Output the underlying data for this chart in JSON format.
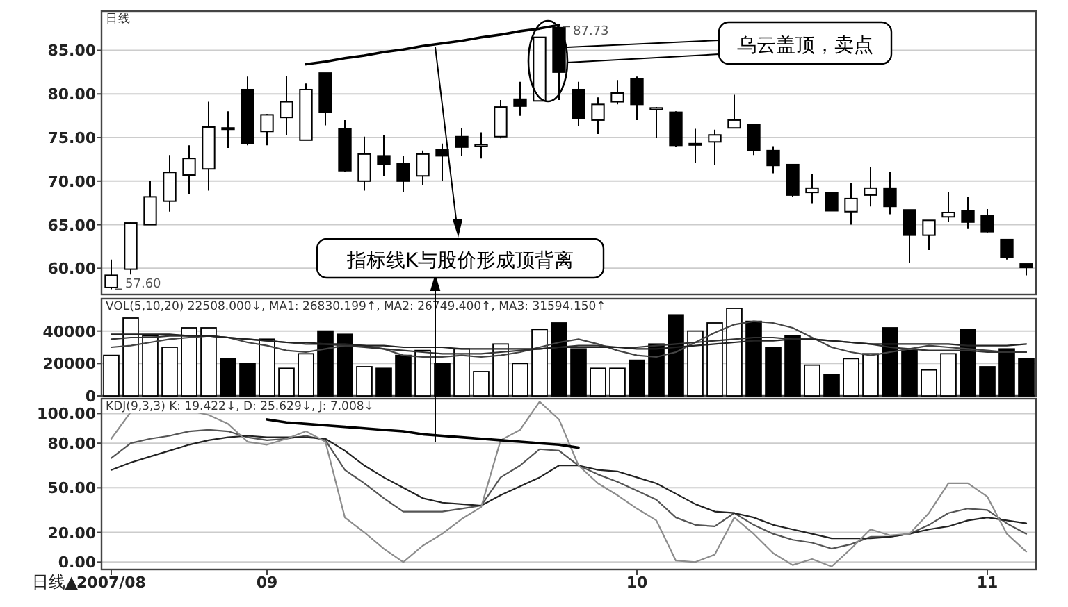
{
  "chart_data": [
    {
      "type": "candlestick",
      "title": "日线",
      "categories": [
        null,
        null,
        null,
        null,
        null,
        null,
        null,
        null,
        null,
        null,
        null,
        null,
        null,
        null,
        null,
        null,
        null,
        null,
        null,
        null,
        null,
        null,
        null,
        null,
        null,
        null,
        null,
        null,
        null,
        null,
        null,
        null,
        null,
        null,
        null,
        null,
        null,
        null,
        null,
        null,
        null,
        null,
        null,
        null,
        null,
        null,
        null,
        null
      ],
      "ohlc": [
        [
          57.8,
          61.0,
          57.6,
          59.2
        ],
        [
          59.9,
          65.3,
          59.3,
          65.2
        ],
        [
          65.0,
          70.0,
          65.0,
          68.2
        ],
        [
          67.7,
          73.0,
          66.5,
          71.0
        ],
        [
          70.7,
          74.1,
          68.5,
          72.6
        ],
        [
          71.4,
          79.1,
          68.9,
          76.2
        ],
        [
          76.1,
          78.0,
          73.8,
          76.0
        ],
        [
          80.5,
          82.0,
          74.1,
          74.3
        ],
        [
          75.7,
          77.7,
          74.1,
          77.6
        ],
        [
          77.3,
          82.1,
          75.3,
          79.1
        ],
        [
          74.7,
          81.2,
          74.7,
          80.5
        ],
        [
          82.4,
          82.4,
          76.4,
          77.9
        ],
        [
          76.0,
          77.0,
          71.1,
          71.2
        ],
        [
          70.0,
          75.1,
          68.9,
          73.1
        ],
        [
          72.9,
          75.3,
          70.6,
          71.9
        ],
        [
          72.0,
          72.9,
          68.7,
          70.0
        ],
        [
          70.6,
          73.5,
          69.5,
          73.1
        ],
        [
          73.6,
          74.3,
          70.0,
          72.9
        ],
        [
          75.1,
          76.1,
          72.9,
          73.9
        ],
        [
          74.0,
          75.6,
          72.6,
          74.2
        ],
        [
          75.1,
          79.3,
          74.9,
          78.5
        ],
        [
          79.4,
          81.4,
          77.5,
          78.6
        ],
        [
          79.2,
          86.5,
          79.2,
          86.5
        ],
        [
          87.6,
          87.73,
          79.3,
          82.5
        ],
        [
          80.5,
          81.4,
          76.3,
          77.2
        ],
        [
          77.0,
          79.6,
          75.4,
          78.8
        ],
        [
          79.1,
          81.6,
          78.8,
          80.1
        ],
        [
          81.7,
          82.0,
          77.0,
          78.8
        ],
        [
          78.2,
          78.5,
          75.0,
          78.4
        ],
        [
          77.9,
          78.0,
          73.9,
          74.1
        ],
        [
          74.2,
          76.0,
          72.1,
          74.3
        ],
        [
          74.5,
          75.9,
          71.9,
          75.3
        ],
        [
          76.1,
          79.9,
          76.1,
          77.0
        ],
        [
          76.5,
          76.5,
          73.0,
          73.5
        ],
        [
          73.5,
          74.0,
          70.9,
          71.8
        ],
        [
          71.9,
          71.9,
          68.2,
          68.4
        ],
        [
          68.7,
          70.8,
          67.4,
          69.2
        ],
        [
          68.7,
          68.7,
          66.6,
          66.6
        ],
        [
          66.5,
          69.8,
          65.0,
          68.0
        ],
        [
          68.4,
          71.6,
          67.1,
          69.2
        ],
        [
          69.2,
          71.1,
          66.2,
          67.1
        ],
        [
          66.7,
          66.7,
          60.6,
          63.8
        ],
        [
          63.8,
          65.5,
          62.1,
          65.5
        ],
        [
          65.9,
          68.7,
          65.3,
          66.4
        ],
        [
          66.6,
          68.2,
          64.5,
          65.3
        ],
        [
          66.0,
          66.8,
          64.1,
          64.2
        ],
        [
          63.3,
          63.3,
          61.0,
          61.3
        ],
        [
          60.5,
          60.5,
          59.2,
          60.1
        ]
      ],
      "series": [
        {
          "type": "line",
          "color": "#000000",
          "values": [
            null,
            null,
            null,
            null,
            null,
            null,
            null,
            null,
            null,
            null,
            83.4,
            83.7,
            84.1,
            84.4,
            84.8,
            85.1,
            85.5,
            85.8,
            86.1,
            86.5,
            86.8,
            87.2,
            87.5,
            87.9,
            null,
            null,
            null,
            null,
            null,
            null,
            null,
            null,
            null,
            null,
            null,
            null,
            null,
            null,
            null,
            null,
            null,
            null,
            null,
            null,
            null,
            null,
            null,
            null
          ]
        }
      ],
      "ylim": [
        57,
        89.5
      ],
      "yticks": [
        {
          "value": 60,
          "label": "60.00"
        },
        {
          "value": 65,
          "label": "65.00"
        },
        {
          "value": 70,
          "label": "70.00"
        },
        {
          "value": 75,
          "label": "75.00"
        },
        {
          "value": 80,
          "label": "80.00"
        },
        {
          "value": 85,
          "label": "85.00"
        }
      ],
      "grid": "y",
      "tick_labels": "y",
      "annotations": [
        "57.60",
        "87.73",
        "乌云盖顶，卖点",
        "指标线K与股价形成顶背离"
      ]
    },
    {
      "type": "bar",
      "title": "VOL(5,10,20) 22508.000↓, MA1: 26830.199↑, MA2: 26749.400↑, MA3: 31594.150↑",
      "categories": [
        null,
        null,
        null,
        null,
        null,
        null,
        null,
        null,
        null,
        null,
        null,
        null,
        null,
        null,
        null,
        null,
        null,
        null,
        null,
        null,
        null,
        null,
        null,
        null,
        null,
        null,
        null,
        null,
        null,
        null,
        null,
        null,
        null,
        null,
        null,
        null,
        null,
        null,
        null,
        null,
        null,
        null,
        null,
        null,
        null,
        null,
        null,
        null
      ],
      "series": [
        {
          "values": [
            25000,
            48000,
            37000,
            30000,
            42000,
            42000,
            23000,
            20000,
            35000,
            17000,
            26000,
            40000,
            38000,
            18000,
            17000,
            25000,
            28000,
            20000,
            29000,
            15000,
            32000,
            20000,
            41000,
            45000,
            29000,
            17000,
            17000,
            22000,
            32000,
            50000,
            40000,
            45000,
            54000,
            46000,
            30000,
            37000,
            19000,
            13000,
            23000,
            26000,
            42000,
            28000,
            16000,
            26000,
            41000,
            18000,
            29000,
            23000
          ],
          "colors": [
            "#ffffff",
            "#ffffff",
            "#ffffff",
            "#ffffff",
            "#ffffff",
            "#ffffff",
            "#000000",
            "#000000",
            "#ffffff",
            "#ffffff",
            "#ffffff",
            "#000000",
            "#000000",
            "#ffffff",
            "#000000",
            "#000000",
            "#ffffff",
            "#000000",
            "#ffffff",
            "#ffffff",
            "#ffffff",
            "#ffffff",
            "#ffffff",
            "#000000",
            "#000000",
            "#ffffff",
            "#ffffff",
            "#000000",
            "#000000",
            "#000000",
            "#ffffff",
            "#ffffff",
            "#ffffff",
            "#000000",
            "#000000",
            "#000000",
            "#ffffff",
            "#000000",
            "#ffffff",
            "#ffffff",
            "#000000",
            "#000000",
            "#ffffff",
            "#ffffff",
            "#000000",
            "#000000",
            "#000000",
            "#000000"
          ]
        },
        {
          "type": "line",
          "color": "#444444",
          "values": [
            30000,
            31000,
            33000,
            35000,
            36000,
            37000,
            36000,
            33000,
            31000,
            28000,
            27000,
            29000,
            31000,
            31000,
            29000,
            25000,
            24000,
            24000,
            25000,
            24000,
            25000,
            27000,
            30000,
            33000,
            35000,
            32000,
            28000,
            25000,
            24000,
            27000,
            33000,
            39000,
            44000,
            46000,
            45000,
            42000,
            36000,
            30000,
            27000,
            25000,
            27000,
            29000,
            31000,
            30000,
            29000,
            28000,
            27000,
            27000
          ]
        },
        {
          "type": "line",
          "color": "#333333",
          "values": [
            35000,
            36000,
            36000,
            37000,
            37000,
            37000,
            36000,
            35000,
            34000,
            33000,
            32000,
            32000,
            31000,
            30000,
            29000,
            28000,
            27000,
            26000,
            26000,
            26000,
            27000,
            28000,
            29000,
            30000,
            31000,
            31000,
            30000,
            30000,
            31000,
            32000,
            33000,
            34000,
            35000,
            36000,
            36000,
            35000,
            35000,
            34000,
            33000,
            32000,
            30000,
            29000,
            28000,
            28000,
            28000,
            27000,
            27000,
            27000
          ]
        },
        {
          "type": "line",
          "color": "#222222",
          "values": [
            38000,
            38000,
            38000,
            38000,
            37000,
            37000,
            36000,
            35000,
            34000,
            33000,
            33000,
            32000,
            32000,
            31000,
            31000,
            30000,
            30000,
            30000,
            29000,
            29000,
            29000,
            29000,
            29000,
            30000,
            30000,
            30000,
            30000,
            29000,
            29000,
            30000,
            31000,
            32000,
            33000,
            34000,
            34000,
            35000,
            35000,
            34000,
            33000,
            32000,
            32000,
            32000,
            32000,
            32000,
            31000,
            31000,
            31000,
            32000
          ]
        }
      ],
      "ylim": [
        0,
        60000
      ],
      "yticks": [
        0,
        20000,
        40000
      ],
      "grid": "y",
      "tick_labels": "y"
    },
    {
      "type": "line",
      "title": "KDJ(9,3,3) K: 19.422↓, D: 25.629↓, J: 7.008↓",
      "categories": [
        "2007/08",
        null,
        null,
        null,
        null,
        null,
        null,
        null,
        "09",
        null,
        null,
        null,
        null,
        null,
        null,
        null,
        null,
        null,
        null,
        null,
        null,
        null,
        null,
        null,
        null,
        null,
        null,
        "10",
        null,
        null,
        null,
        null,
        null,
        null,
        null,
        null,
        null,
        null,
        null,
        null,
        null,
        null,
        null,
        null,
        null,
        "11",
        null,
        null
      ],
      "series": [
        {
          "color": "#555555",
          "values": [
            70,
            80,
            83,
            85,
            88,
            89,
            88,
            84,
            82,
            83,
            85,
            82,
            62,
            53,
            43,
            34,
            34,
            34,
            36,
            38,
            57,
            65,
            76,
            75,
            65,
            59,
            54,
            48,
            42,
            30,
            25,
            24,
            33,
            25,
            19,
            15,
            13,
            9,
            12,
            17,
            17,
            19,
            25,
            33,
            36,
            35,
            26,
            19
          ]
        },
        {
          "color": "#222222",
          "values": [
            62,
            67,
            71,
            75,
            79,
            82,
            84,
            85,
            84,
            84,
            84,
            83,
            75,
            65,
            57,
            50,
            43,
            40,
            39,
            38,
            45,
            51,
            57,
            65,
            65,
            62,
            61,
            57,
            53,
            46,
            39,
            34,
            33,
            30,
            25,
            22,
            19,
            16,
            16,
            16,
            17,
            19,
            22,
            24,
            28,
            30,
            28,
            26
          ]
        },
        {
          "color": "#8c8c8c",
          "values": [
            83,
            101,
            102,
            102,
            102,
            99,
            93,
            81,
            79,
            83,
            88,
            81,
            30,
            20,
            9,
            0,
            11,
            19,
            29,
            37,
            82,
            89,
            108,
            96,
            65,
            53,
            45,
            36,
            28,
            1,
            0,
            5,
            30,
            19,
            6,
            -2,
            2,
            -3,
            9,
            22,
            18,
            19,
            33,
            53,
            53,
            44,
            19,
            7
          ]
        },
        {
          "color": "#000000",
          "values": [
            null,
            null,
            null,
            null,
            null,
            null,
            null,
            null,
            96,
            94,
            93,
            92,
            91,
            90,
            89,
            88,
            86,
            85,
            84,
            83,
            82,
            81,
            80,
            79,
            77,
            null,
            null,
            null,
            null,
            null,
            null,
            null,
            null,
            null,
            null,
            null,
            null,
            null,
            null,
            null,
            null,
            null,
            null,
            null,
            null,
            null,
            null,
            null
          ]
        }
      ],
      "ylim": [
        -5,
        110
      ],
      "yticks": [
        {
          "value": 0,
          "label": "0.00"
        },
        {
          "value": 20,
          "label": "20.00"
        },
        {
          "value": 50,
          "label": "50.00"
        },
        {
          "value": 80,
          "label": "80.00"
        },
        {
          "value": 100,
          "label": "100.00"
        }
      ],
      "grid": "y",
      "annotations": [
        "日线▲"
      ]
    }
  ]
}
